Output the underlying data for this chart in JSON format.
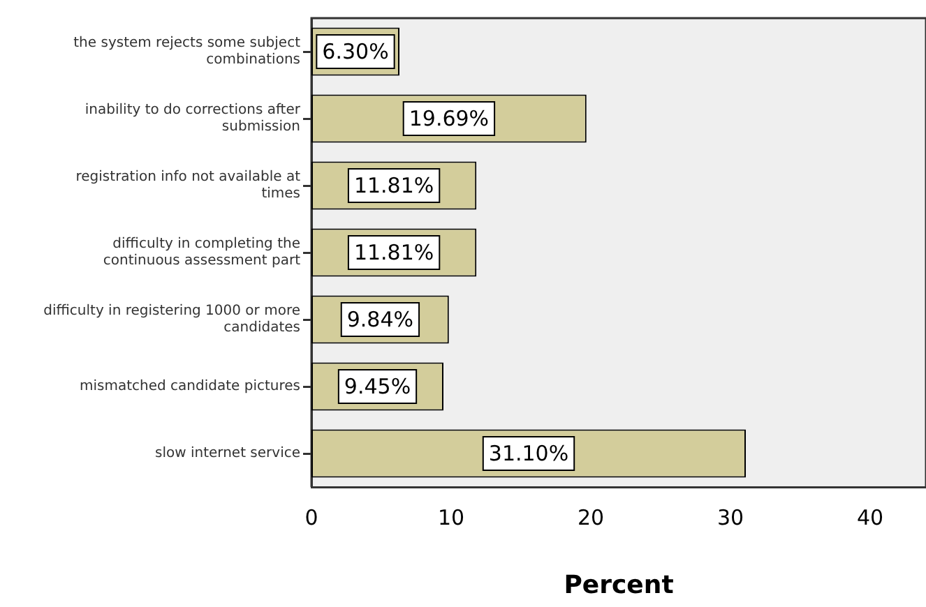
{
  "chart_data": {
    "type": "bar",
    "orientation": "horizontal",
    "xlabel": "Percent",
    "categories": [
      "the system rejects some subject combinations",
      "inability to do corrections after submission",
      "registration info not available at times",
      "difficulty in completing the continuous assessment part",
      "difficulty in registering 1000 or more candidates",
      "mismatched candidate pictures",
      "slow internet service"
    ],
    "values": [
      6.3,
      19.69,
      11.81,
      11.81,
      9.84,
      9.45,
      31.1
    ],
    "value_labels": [
      "6.30%",
      "19.69%",
      "11.81%",
      "11.81%",
      "9.84%",
      "9.45%",
      "31.10%"
    ],
    "color": "#d3cd9b",
    "xlim": [
      0,
      44
    ],
    "xticks": [
      0,
      10,
      20,
      30,
      40
    ]
  }
}
